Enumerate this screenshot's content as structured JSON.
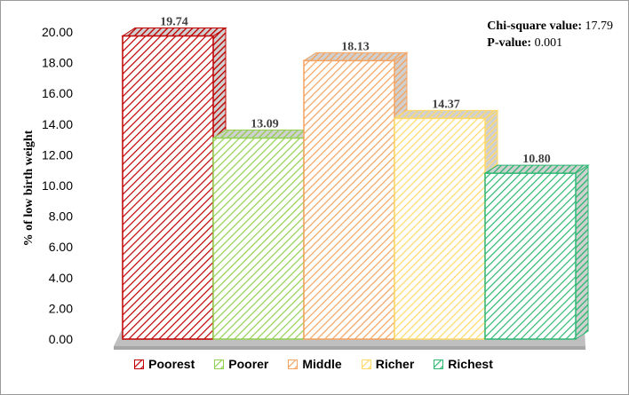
{
  "chart_data": {
    "type": "bar",
    "categories": [
      "Poorest",
      "Poorer",
      "Middle",
      "Richer",
      "Richest"
    ],
    "values": [
      19.74,
      13.09,
      18.13,
      14.37,
      10.8
    ],
    "value_labels": [
      "19.74",
      "13.09",
      "18.13",
      "14.37",
      "10.80"
    ],
    "ylabel": "% of low birth weight",
    "ylim": [
      0,
      20
    ],
    "yticks": [
      "0.00",
      "2.00",
      "4.00",
      "6.00",
      "8.00",
      "10.00",
      "12.00",
      "14.00",
      "16.00",
      "18.00",
      "20.00"
    ],
    "grid": false,
    "legend_position": "bottom",
    "colors": [
      "#c00000",
      "#92d050",
      "#f4a460",
      "#ffd966",
      "#2eb872"
    ],
    "fill_pattern": "diagonal-hatch"
  },
  "stats": {
    "chi_label": "Chi-square value:",
    "chi_value": "17.79",
    "p_label": "P-value:",
    "p_value": "0.001"
  }
}
